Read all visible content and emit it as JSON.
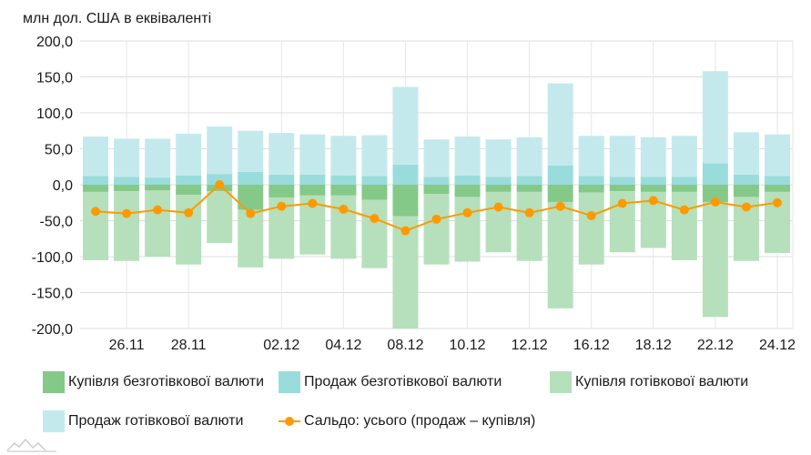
{
  "chart_data": {
    "type": "bar",
    "ylabel": "млн дол. США в еквіваленті",
    "ylim": [
      -200,
      200
    ],
    "y_ticks": [
      "200,0",
      "150,0",
      "100,0",
      "50,0",
      "0,0",
      "-50,0",
      "-100,0",
      "-150,0",
      "-200,0"
    ],
    "y_tick_values": [
      200,
      150,
      100,
      50,
      0,
      -50,
      -100,
      -150,
      -200
    ],
    "x_tick_labels": [
      {
        "index": 1,
        "label": "26.11"
      },
      {
        "index": 3,
        "label": "28.11"
      },
      {
        "index": 6,
        "label": "02.12"
      },
      {
        "index": 8,
        "label": "04.12"
      },
      {
        "index": 10,
        "label": "08.12"
      },
      {
        "index": 12,
        "label": "10.12"
      },
      {
        "index": 14,
        "label": "12.12"
      },
      {
        "index": 16,
        "label": "16.12"
      },
      {
        "index": 18,
        "label": "18.12"
      },
      {
        "index": 20,
        "label": "22.12"
      },
      {
        "index": 22,
        "label": "24.12"
      }
    ],
    "n_periods": 23,
    "grid": true,
    "legend_position": "bottom",
    "series": [
      {
        "name": "Купівля безготівкової валюти",
        "kind": "bar",
        "color": "#85c989",
        "values": [
          -10,
          -9,
          -8,
          -14,
          -9,
          -35,
          -18,
          -15,
          -15,
          -21,
          -44,
          -13,
          -17,
          -10,
          -10,
          -24,
          -11,
          -9,
          -10,
          -10,
          -24,
          -17,
          -10
        ]
      },
      {
        "name": "Продаж безготівкової валюти",
        "kind": "bar",
        "color": "#9adcdc",
        "values": [
          12,
          11,
          10,
          13,
          15,
          18,
          14,
          14,
          13,
          12,
          28,
          11,
          13,
          11,
          12,
          27,
          12,
          11,
          11,
          11,
          30,
          14,
          12
        ]
      },
      {
        "name": "Купівля готівкової валюти",
        "kind": "bar",
        "color": "#b5e0bb",
        "values": [
          -95,
          -97,
          -92,
          -97,
          -72,
          -80,
          -85,
          -82,
          -88,
          -95,
          -158,
          -98,
          -90,
          -84,
          -96,
          -148,
          -100,
          -85,
          -78,
          -95,
          -160,
          -89,
          -85
        ]
      },
      {
        "name": "Продаж готівкової валюти",
        "kind": "bar",
        "color": "#c4e9ec",
        "values": [
          55,
          53,
          54,
          58,
          66,
          57,
          58,
          56,
          55,
          57,
          108,
          52,
          54,
          52,
          54,
          114,
          56,
          57,
          55,
          57,
          128,
          59,
          58
        ]
      },
      {
        "name": "Сальдо: усього (продаж – купівля)",
        "kind": "line",
        "color": "#ff9900",
        "values": [
          -37,
          -40,
          -35,
          -39,
          0,
          -40,
          -30,
          -26,
          -34,
          -47,
          -64,
          -48,
          -39,
          -31,
          -39,
          -30,
          -43,
          -26,
          -22,
          -35,
          -24,
          -31,
          -25
        ]
      }
    ]
  }
}
